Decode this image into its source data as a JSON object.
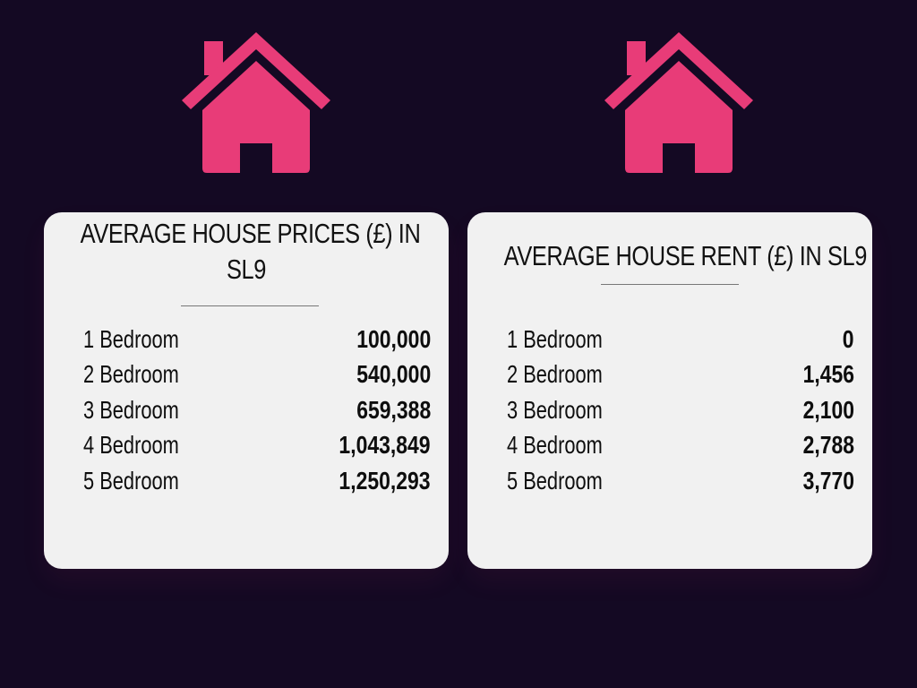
{
  "colors": {
    "background": "#140923",
    "accent": "#e83c78",
    "card": "#f1f1f1",
    "text": "#111111"
  },
  "icons": [
    "house-icon",
    "house-icon"
  ],
  "prices": {
    "title_line1": "AVERAGE HOUSE PRICES (£) IN",
    "title_line2": "SL9",
    "rows": [
      {
        "label": "1 Bedroom",
        "value": "100,000"
      },
      {
        "label": "2 Bedroom",
        "value": "540,000"
      },
      {
        "label": "3 Bedroom",
        "value": "659,388"
      },
      {
        "label": "4 Bedroom",
        "value": "1,043,849"
      },
      {
        "label": "5 Bedroom",
        "value": "1,250,293"
      }
    ]
  },
  "rent": {
    "title": "AVERAGE HOUSE RENT (£) IN SL9",
    "rows": [
      {
        "label": "1 Bedroom",
        "value": "0"
      },
      {
        "label": "2 Bedroom",
        "value": "1,456"
      },
      {
        "label": "3 Bedroom",
        "value": "2,100"
      },
      {
        "label": "4 Bedroom",
        "value": "2,788"
      },
      {
        "label": "5 Bedroom",
        "value": "3,770"
      }
    ]
  }
}
